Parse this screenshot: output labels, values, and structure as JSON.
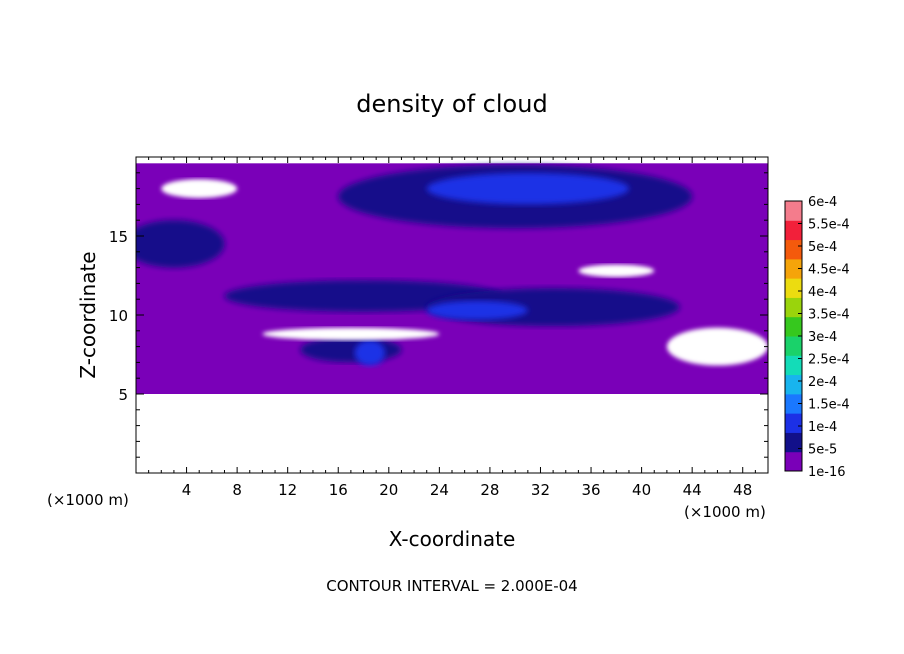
{
  "chart_data": {
    "type": "heatmap",
    "title": "density of cloud",
    "xlabel": "X-coordinate",
    "ylabel": "Z-coordinate",
    "x_unit_note": "(×1000 m)",
    "y_unit_note": "(×1000 m)",
    "xlim": [
      0,
      50
    ],
    "ylim": [
      0,
      20
    ],
    "x_ticks": [
      4,
      8,
      12,
      16,
      20,
      24,
      28,
      32,
      36,
      40,
      44,
      48
    ],
    "y_ticks": [
      5,
      10,
      15
    ],
    "footer": "CONTOUR INTERVAL = 2.000E-04",
    "colorbar": {
      "labels": [
        "1e-16",
        "5e-5",
        "1e-4",
        "1.5e-4",
        "2e-4",
        "2.5e-4",
        "3e-4",
        "3.5e-4",
        "4e-4",
        "4.5e-4",
        "5e-4",
        "5.5e-4",
        "6e-4"
      ],
      "colors": [
        "#7a00b8",
        "#12108a",
        "#1c30e6",
        "#1a78ff",
        "#18b4ee",
        "#13dcb8",
        "#1ad26a",
        "#36c81e",
        "#9ad40c",
        "#ecdc10",
        "#f5a40a",
        "#f45a0c",
        "#f2203a",
        "#f47c8c"
      ]
    },
    "regions": [
      {
        "level": "1e-16",
        "desc": "background cloud layer",
        "x": [
          0,
          50
        ],
        "z": [
          5,
          19.6
        ]
      },
      {
        "level": "5e-5",
        "x_center": 30,
        "z_center": 17.5,
        "x_halfwidth": 14,
        "z_halfwidth": 2
      },
      {
        "level": "5e-5",
        "x_center": 3,
        "z_center": 14.5,
        "x_halfwidth": 4,
        "z_halfwidth": 1.5
      },
      {
        "level": "5e-5",
        "x_center": 18,
        "z_center": 11.2,
        "x_halfwidth": 11,
        "z_halfwidth": 1
      },
      {
        "level": "5e-5",
        "x_center": 33,
        "z_center": 10.5,
        "x_halfwidth": 10,
        "z_halfwidth": 1.2
      },
      {
        "level": "5e-5",
        "x_center": 17,
        "z_center": 7.8,
        "x_halfwidth": 4,
        "z_halfwidth": 0.8
      },
      {
        "level": "1e-4",
        "x_center": 31,
        "z_center": 18,
        "x_halfwidth": 8,
        "z_halfwidth": 1
      },
      {
        "level": "1e-4",
        "x_center": 27,
        "z_center": 10.3,
        "x_halfwidth": 4,
        "z_halfwidth": 0.6
      },
      {
        "level": "1e-4",
        "x_center": 18.5,
        "z_center": 7.6,
        "x_halfwidth": 1.2,
        "z_halfwidth": 0.8
      }
    ],
    "gaps": [
      {
        "desc": "clear air",
        "x_center": 5,
        "z_center": 18,
        "x_halfwidth": 3,
        "z_halfwidth": 0.6
      },
      {
        "desc": "clear air",
        "x_center": 17,
        "z_center": 8.8,
        "x_halfwidth": 7,
        "z_halfwidth": 0.4
      },
      {
        "desc": "clear air",
        "x_center": 46,
        "z_center": 8,
        "x_halfwidth": 4,
        "z_halfwidth": 1.2
      },
      {
        "desc": "clear air",
        "x_center": 38,
        "z_center": 12.8,
        "x_halfwidth": 3,
        "z_halfwidth": 0.4
      }
    ]
  }
}
